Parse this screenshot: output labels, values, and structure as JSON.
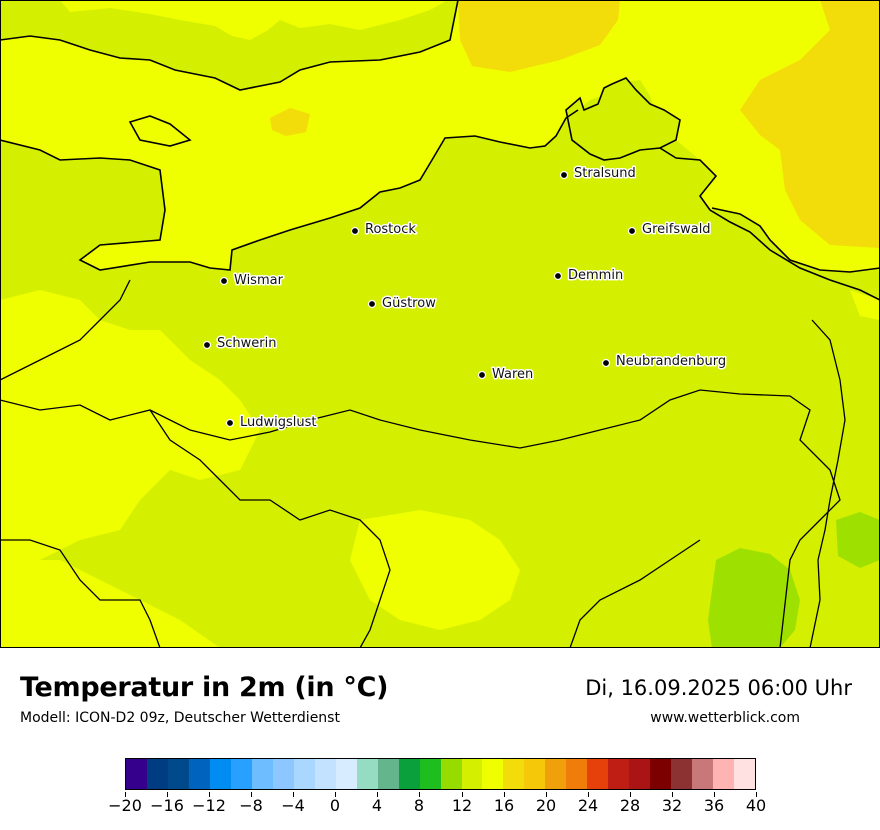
{
  "map": {
    "colors": {
      "sea": "#f0ff00",
      "land_main": "#d4f000",
      "warm_patch": "#f2dc0a",
      "cool_patch": "#9ee000",
      "border": "#000000"
    },
    "cities": [
      {
        "name": "Stralsund"
      },
      {
        "name": "Rostock"
      },
      {
        "name": "Greifswald"
      },
      {
        "name": "Wismar"
      },
      {
        "name": "Demmin"
      },
      {
        "name": "Güstrow"
      },
      {
        "name": "Schwerin"
      },
      {
        "name": "Neubrandenburg"
      },
      {
        "name": "Waren"
      },
      {
        "name": "Ludwigslust"
      }
    ]
  },
  "footer": {
    "title": "Temperatur in 2m (in °C)",
    "subtitle": "Modell: ICON-D2 09z, Deutscher Wetterdienst",
    "datetime": "Di, 16.09.2025 06:00 Uhr",
    "site": "www.wetterblick.com"
  },
  "colorbar": {
    "colors": [
      "#34008c",
      "#003c82",
      "#004a8c",
      "#0064be",
      "#008cf0",
      "#28a0ff",
      "#6ebeff",
      "#8cc8ff",
      "#aad7ff",
      "#c3e2ff",
      "#d7ecff",
      "#96dcc3",
      "#64b48c",
      "#0aa03c",
      "#1ebe1e",
      "#96dc00",
      "#d4f000",
      "#f0ff00",
      "#f2dc0a",
      "#f5c80a",
      "#f0a00a",
      "#f07d0a",
      "#e6410a",
      "#be1e14",
      "#aa1414",
      "#7d0000",
      "#8c3232",
      "#c87878",
      "#ffb4b4",
      "#ffe1e1"
    ],
    "ticks": [
      "−20",
      "−16",
      "−12",
      "−8",
      "−4",
      "0",
      "4",
      "8",
      "12",
      "16",
      "20",
      "24",
      "28",
      "32",
      "36",
      "40"
    ]
  }
}
